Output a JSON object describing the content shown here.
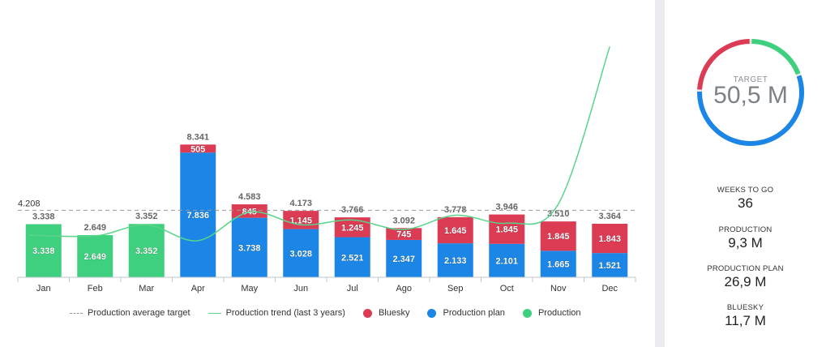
{
  "chart_data": {
    "type": "bar",
    "stacked": true,
    "categories": [
      "Jan",
      "Feb",
      "Mar",
      "Apr",
      "May",
      "Jun",
      "Jul",
      "Ago",
      "Sep",
      "Oct",
      "Nov",
      "Dec"
    ],
    "series": [
      {
        "name": "Production",
        "color": "#3fd07f",
        "values": [
          3.338,
          2.649,
          3.352,
          null,
          null,
          null,
          null,
          null,
          null,
          null,
          null,
          null
        ],
        "labels": [
          "3.338",
          "2.649",
          "3.352",
          "",
          "",
          "",
          "",
          "",
          "",
          "",
          "",
          ""
        ]
      },
      {
        "name": "Production plan",
        "color": "#1b86e6",
        "values": [
          null,
          null,
          null,
          7.836,
          3.738,
          3.028,
          2.521,
          2.347,
          2.133,
          2.101,
          1.665,
          1.521
        ],
        "labels": [
          "",
          "",
          "",
          "7.836",
          "3.738",
          "3.028",
          "2.521",
          "2.347",
          "2.133",
          "2.101",
          "1.665",
          "1.521"
        ]
      },
      {
        "name": "Bluesky",
        "color": "#dc3b54",
        "values": [
          null,
          null,
          null,
          0.505,
          0.845,
          1.145,
          1.245,
          0.745,
          1.645,
          1.845,
          1.845,
          1.843
        ],
        "labels": [
          "",
          "",
          "",
          "505",
          "845",
          "1.145",
          "1.245",
          "745",
          "1.645",
          "1.845",
          "1.845",
          "1.843"
        ]
      }
    ],
    "totals": [
      "3.338",
      "2.649",
      "3.352",
      "8.341",
      "4.583",
      "4.173",
      "3.766",
      "3.092",
      "3.778",
      "3.946",
      "3.510",
      "3.364"
    ],
    "total_values": [
      3.338,
      2.649,
      3.352,
      8.341,
      4.583,
      4.173,
      3.766,
      3.092,
      3.778,
      3.946,
      3.51,
      3.364
    ],
    "average_target": {
      "name": "Production average target",
      "value": 4.208,
      "label": "4.208",
      "color": "#9a9a9a"
    },
    "trend": {
      "name": "Production trend (last 3 years)",
      "color": "#59d48a",
      "values": [
        2.65,
        2.6,
        3.3,
        2.3,
        4.1,
        3.3,
        3.6,
        3.0,
        3.9,
        3.4,
        4.6,
        14.5
      ]
    },
    "ylim": [
      0,
      16
    ],
    "grid": false,
    "legend_position": "bottom",
    "legend": [
      {
        "label": "Production average target",
        "kind": "dash",
        "color": "#9a9a9a"
      },
      {
        "label": "Production trend (last 3 years)",
        "kind": "line",
        "color": "#59d48a"
      },
      {
        "label": "Bluesky",
        "kind": "dot",
        "color": "#dc3b54"
      },
      {
        "label": "Production plan",
        "kind": "dot",
        "color": "#1b86e6"
      },
      {
        "label": "Production",
        "kind": "dot",
        "color": "#3fd07f"
      }
    ]
  },
  "gauge": {
    "title": "TARGET",
    "value": "50,5 M",
    "segments": [
      {
        "name": "Production",
        "value": 9.3,
        "color": "#3fd07f"
      },
      {
        "name": "Production plan",
        "value": 26.9,
        "color": "#1b86e6"
      },
      {
        "name": "Bluesky",
        "value": 11.7,
        "color": "#dc3b54"
      }
    ],
    "target_total": 50.5,
    "track_color": "#e8e8e8"
  },
  "stats": [
    {
      "label": "WEEKS TO GO",
      "value": "36"
    },
    {
      "label": "PRODUCTION",
      "value": "9,3 M"
    },
    {
      "label": "PRODUCTION PLAN",
      "value": "26,9 M"
    },
    {
      "label": "BLUESKY",
      "value": "11,7 M"
    }
  ]
}
